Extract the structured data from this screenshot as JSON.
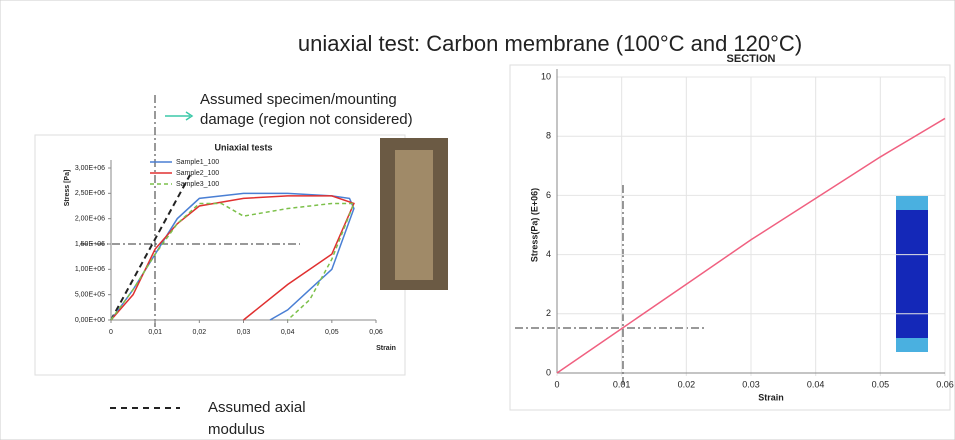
{
  "title": "uniaxial test: Carbon membrane (100°C and 120°C)",
  "annotations": [
    "Assumed specimen/mounting",
    "damage (region not considered)",
    "Assumed axial",
    "modulus"
  ],
  "chart_data": [
    {
      "type": "line",
      "title": "Uniaxial tests",
      "x_label": "Strain",
      "y_label": "Stress [Pa]",
      "xlim": [
        0,
        0.06
      ],
      "ylim": [
        0,
        3000000
      ],
      "grid": false,
      "xticks": [
        0,
        {
          "value": 0.01,
          "label": "0,01"
        },
        {
          "value": 0.02,
          "label": "0,02"
        },
        {
          "value": 0.03,
          "label": "0,03"
        },
        {
          "value": 0.04,
          "label": "0,04"
        },
        {
          "value": 0.05,
          "label": "0,05"
        },
        {
          "value": 0.06,
          "label": "0,06"
        }
      ],
      "yticks": [
        {
          "value": 0,
          "label": "0,00E+00"
        },
        {
          "value": 500000,
          "label": "5,00E+05"
        },
        {
          "value": 1000000,
          "label": "1,00E+06"
        },
        {
          "value": 1500000,
          "label": "1,50E+06"
        },
        {
          "value": 2000000,
          "label": "2,00E+06"
        },
        {
          "value": 2500000,
          "label": "2,50E+06"
        },
        {
          "value": 3000000,
          "label": "3,00E+06"
        }
      ],
      "series": [
        {
          "name": "Sample1_100",
          "color": "#4a7fd4",
          "line_style": "solid",
          "x": [
            0,
            0.005,
            0.01,
            0.015,
            0.02,
            0.03,
            0.04,
            0.05,
            0.054,
            0.055,
            0.05,
            0.045,
            0.04,
            0.036
          ],
          "values": [
            0,
            600000,
            1300000,
            2000000,
            2400000,
            2500000,
            2500000,
            2450000,
            2400000,
            2200000,
            1000000,
            600000,
            200000,
            0
          ]
        },
        {
          "name": "Sample2_100",
          "color": "#e03030",
          "line_style": "solid",
          "x": [
            0,
            0.005,
            0.01,
            0.015,
            0.02,
            0.03,
            0.04,
            0.05,
            0.055,
            0.05,
            0.04,
            0.03
          ],
          "values": [
            0,
            500000,
            1400000,
            1900000,
            2250000,
            2400000,
            2450000,
            2450000,
            2300000,
            1300000,
            700000,
            0
          ]
        },
        {
          "name": "Sample3_100",
          "color": "#7cc04a",
          "line_style": "dashed",
          "x": [
            0,
            0.005,
            0.01,
            0.015,
            0.02,
            0.025,
            0.03,
            0.04,
            0.05,
            0.055,
            0.05,
            0.045,
            0.04
          ],
          "values": [
            0,
            600000,
            1300000,
            1900000,
            2300000,
            2300000,
            2050000,
            2200000,
            2300000,
            2300000,
            1200000,
            400000,
            0
          ]
        }
      ]
    },
    {
      "type": "line",
      "title": "SECTION",
      "x_label": "Strain",
      "y_label": "Stress(Pa) (E+06)",
      "xlim": [
        0,
        0.06
      ],
      "ylim": [
        0,
        10
      ],
      "grid": true,
      "xticks": [
        0,
        0.01,
        0.02,
        0.03,
        0.04,
        0.05,
        0.06
      ],
      "yticks": [
        0,
        2,
        4,
        6,
        8,
        10
      ],
      "series": [
        {
          "color": "#f06080",
          "line_style": "solid",
          "x": [
            0,
            0.01,
            0.02,
            0.03,
            0.04,
            0.05,
            0.06
          ],
          "values": [
            0,
            1.5,
            3.0,
            4.5,
            5.9,
            7.3,
            8.6
          ]
        }
      ]
    }
  ]
}
